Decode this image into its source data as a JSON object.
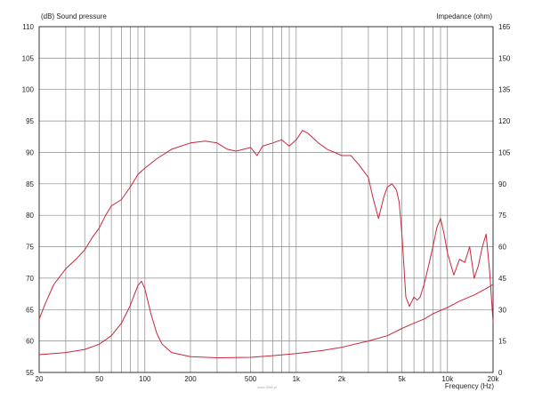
{
  "chart_data": {
    "type": "line",
    "left_axis_label": "(dB)  Sound pressure",
    "right_axis_label": "Impedance  (ohm)",
    "x_axis_label": "Frequency  (Hz)",
    "x_scale": "log",
    "xlim": [
      20,
      20000
    ],
    "ylim_left": [
      55,
      110
    ],
    "ylim_right": [
      0,
      165
    ],
    "grid": true,
    "line_color": "#c8283c",
    "x_ticks": [
      {
        "value": 20,
        "label": "20"
      },
      {
        "value": 50,
        "label": "50"
      },
      {
        "value": 100,
        "label": "100"
      },
      {
        "value": 200,
        "label": "200"
      },
      {
        "value": 500,
        "label": "500"
      },
      {
        "value": 1000,
        "label": "1k"
      },
      {
        "value": 2000,
        "label": "2k"
      },
      {
        "value": 5000,
        "label": "5k"
      },
      {
        "value": 10000,
        "label": "10k"
      },
      {
        "value": 20000,
        "label": "20k"
      }
    ],
    "left_ticks": [
      55,
      60,
      65,
      70,
      75,
      80,
      85,
      90,
      95,
      100,
      105,
      110
    ],
    "right_ticks": [
      0,
      15,
      30,
      45,
      60,
      75,
      90,
      105,
      120,
      135,
      150,
      165
    ],
    "series": [
      {
        "axis": "left",
        "x": [
          20,
          22,
          25,
          30,
          35,
          40,
          45,
          50,
          55,
          60,
          70,
          80,
          90,
          100,
          120,
          150,
          200,
          250,
          300,
          350,
          400,
          450,
          500,
          550,
          600,
          700,
          800,
          900,
          1000,
          1100,
          1200,
          1400,
          1600,
          1800,
          2000,
          2300,
          2600,
          3000,
          3200,
          3500,
          3800,
          4000,
          4300,
          4600,
          4800,
          5000,
          5300,
          5600,
          6000,
          6300,
          6600,
          7000,
          7500,
          8000,
          8500,
          9000,
          9500,
          10000,
          11000,
          12000,
          13000,
          14000,
          15000,
          16000,
          17000,
          18000,
          19000,
          20000
        ],
        "y": [
          63.5,
          66,
          69,
          71.5,
          73,
          74.5,
          76.5,
          78,
          80,
          81.5,
          82.5,
          84.5,
          86.5,
          87.5,
          89,
          90.5,
          91.5,
          91.8,
          91.5,
          90.5,
          90.2,
          90.5,
          90.8,
          89.5,
          91,
          91.5,
          92,
          91,
          92,
          93.5,
          93,
          91.5,
          90.5,
          90,
          89.5,
          89.5,
          88,
          86,
          83,
          79.5,
          83,
          84.5,
          85,
          84,
          82,
          77,
          67,
          65.5,
          67,
          66.5,
          67,
          69,
          72,
          75,
          78,
          79.5,
          77,
          74,
          70.5,
          73,
          72.5,
          75,
          70,
          72,
          75,
          77,
          71,
          63
        ]
      },
      {
        "axis": "right",
        "x": [
          20,
          25,
          30,
          40,
          50,
          60,
          70,
          80,
          85,
          90,
          95,
          100,
          105,
          110,
          120,
          130,
          150,
          200,
          300,
          500,
          700,
          1000,
          1500,
          2000,
          3000,
          4000,
          5000,
          6000,
          7000,
          8000,
          10000,
          12000,
          15000,
          18000,
          20000
        ],
        "y": [
          8.5,
          9,
          9.5,
          11,
          13.5,
          17.5,
          23.5,
          32,
          37,
          41.5,
          43.5,
          40,
          33.5,
          27.5,
          18.5,
          13.5,
          9.5,
          7.5,
          7,
          7.2,
          8,
          9,
          10.5,
          12,
          15,
          17.5,
          21,
          23.5,
          25.5,
          28,
          31,
          34,
          37,
          40,
          42
        ]
      }
    ]
  },
  "watermark": "www.SBA.pl"
}
